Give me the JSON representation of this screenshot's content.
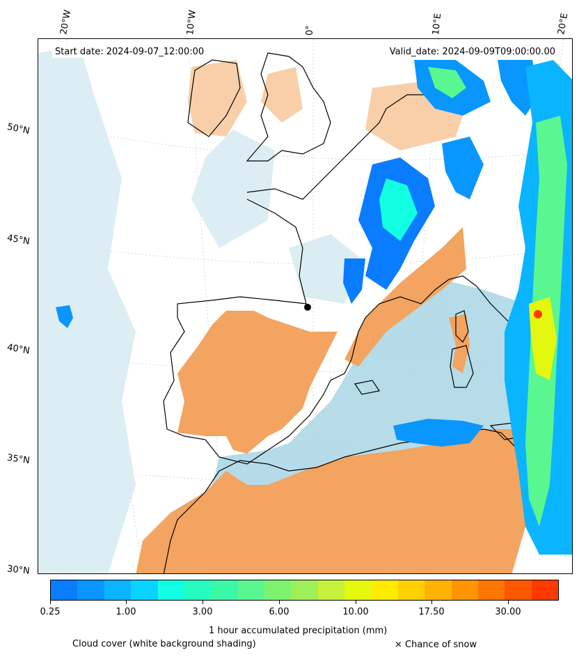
{
  "header": {
    "start_date": "Start date: 2024-09-07_12:00:00",
    "valid_date": "Valid_date: 2024-09-09T09:00:00.00"
  },
  "axes": {
    "lon_labels": [
      "20°W",
      "10°W",
      "0°",
      "10°E",
      "20°E"
    ],
    "lat_labels": [
      "50°N",
      "45°N",
      "40°N",
      "35°N",
      "30°N"
    ]
  },
  "colorbar": {
    "tick_labels": [
      "0.25",
      "1.00",
      "3.00",
      "6.00",
      "10.00",
      "17.50",
      "30.00"
    ],
    "colors": [
      "#0a7cff",
      "#0a96ff",
      "#0ab4ff",
      "#0ad2ff",
      "#12ffe4",
      "#26fbc0",
      "#3af8a6",
      "#5af690",
      "#7cf270",
      "#9ef05a",
      "#c6f03c",
      "#e4f80f",
      "#ffeb00",
      "#ffd100",
      "#ffb300",
      "#ff9500",
      "#ff7600",
      "#ff5800",
      "#ff3a00"
    ],
    "label": "1 hour accumulated precipitation (mm)"
  },
  "legend": {
    "cloud_cover": "Cloud cover (white background shading)",
    "snow": "× Chance of snow"
  },
  "colors": {
    "dust": "#f2a460",
    "dust_light": "#f8cfa8",
    "cloud": "#add8e6",
    "cloud_light": "#d8ecf2",
    "coast": "#000000"
  }
}
